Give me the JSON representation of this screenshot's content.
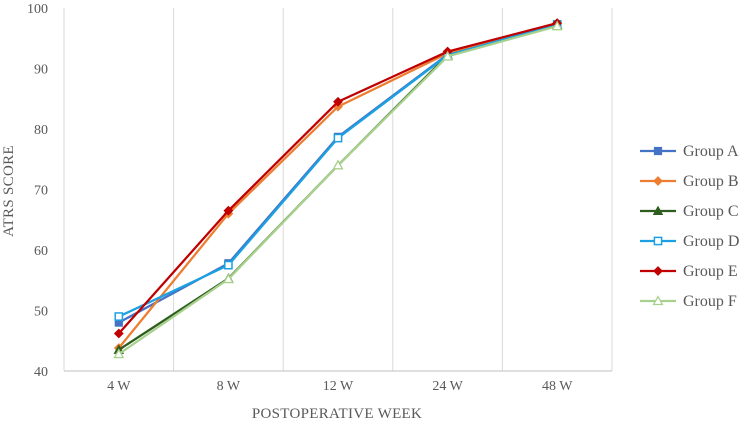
{
  "chart_data": {
    "type": "line",
    "title": "",
    "xlabel": "POSTOPERATIVE WEEK",
    "ylabel": "ATRS SCORE",
    "categories": [
      "4 W",
      "8 W",
      "12 W",
      "24 W",
      "48 W"
    ],
    "ylim": [
      40,
      100
    ],
    "yticks": [
      40,
      50,
      60,
      70,
      80,
      90,
      100
    ],
    "grid": "vertical",
    "legend": "right",
    "series": [
      {
        "name": "Group A",
        "color": "#4472C4",
        "marker": "square",
        "values": [
          48,
          57.8,
          78.7,
          92.3,
          97.3
        ]
      },
      {
        "name": "Group B",
        "color": "#ED7D31",
        "marker": "diamond",
        "values": [
          43.8,
          66,
          83.7,
          92.5,
          97.5
        ]
      },
      {
        "name": "Group C",
        "color": "#2E5E1E",
        "marker": "triangle",
        "values": [
          43.5,
          55.3,
          74,
          92.2,
          97.2
        ]
      },
      {
        "name": "Group D",
        "color": "#1BA1E2",
        "marker": "square-open",
        "values": [
          49,
          57.5,
          78.5,
          92.2,
          97.3
        ]
      },
      {
        "name": "Group E",
        "color": "#C00000",
        "marker": "diamond",
        "values": [
          46.2,
          66.5,
          84.5,
          92.8,
          97.5
        ]
      },
      {
        "name": "Group F",
        "color": "#A9D18E",
        "marker": "triangle-open",
        "values": [
          42.8,
          55.2,
          74,
          92,
          97
        ]
      }
    ]
  }
}
